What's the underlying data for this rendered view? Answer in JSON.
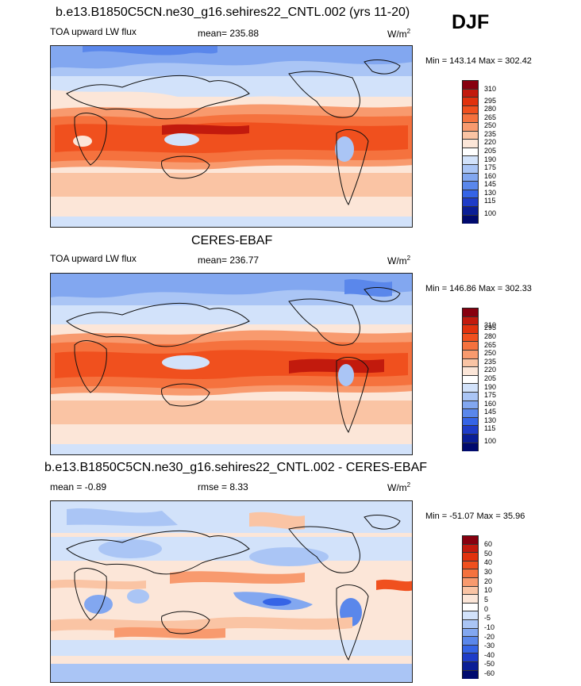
{
  "season": "DJF",
  "colors": {
    "model_scale": [
      "#87000f",
      "#c21a0d",
      "#e1320d",
      "#f0501e",
      "#f5723e",
      "#f89a6e",
      "#fac4a4",
      "#fce6d8",
      "#ffffff",
      "#d2e2fa",
      "#aac5f5",
      "#82a7f0",
      "#5a87eb",
      "#3564e6",
      "#1e3cc8",
      "#0a1e96",
      "#000a6e"
    ],
    "diff_scale": [
      "#87000f",
      "#c21a0d",
      "#e1320d",
      "#f0501e",
      "#f5723e",
      "#f89a6e",
      "#fac4a4",
      "#fce6d8",
      "#ffffff",
      "#d2e2fa",
      "#aac5f5",
      "#82a7f0",
      "#5a87eb",
      "#3564e6",
      "#1e3cc8",
      "#0a1e96",
      "#000a6e"
    ],
    "ocean_map_base": "#f6d0bb",
    "coast": "#111111"
  },
  "panels": [
    {
      "title": "b.e13.B1850C5CN.ne30_g16.sehires22_CNTL.002 (yrs 11-20)",
      "variable": "TOA upward LW flux",
      "mean_text": "mean= 235.88",
      "units_base": "W/m",
      "units_exp": "2",
      "minmax": "Min = 143.14 Max = 302.42",
      "ticks": [
        "310",
        "295",
        "280",
        "265",
        "250",
        "235",
        "220",
        "205",
        "190",
        "175",
        "160",
        "145",
        "130",
        "115",
        "100"
      ]
    },
    {
      "title": "CERES-EBAF",
      "variable": "TOA upward LW flux",
      "mean_text": "mean= 236.77",
      "units_base": "W/m",
      "units_exp": "2",
      "minmax": "Min = 146.86 Max = 302.33",
      "ticks": [
        "310",
        "295",
        "280",
        "265",
        "250",
        "235",
        "220",
        "205",
        "190",
        "175",
        "160",
        "145",
        "130",
        "115",
        "100"
      ]
    },
    {
      "title": "b.e13.B1850C5CN.ne30_g16.sehires22_CNTL.002 - CERES-EBAF",
      "mean_text": "mean =  -0.89",
      "rmse_text": "rmse =   8.33",
      "units_base": "W/m",
      "units_exp": "2",
      "minmax": "Min = -51.07 Max =  35.96",
      "ticks": [
        "60",
        "50",
        "40",
        "30",
        "20",
        "10",
        "5",
        "0",
        "-5",
        "-10",
        "-20",
        "-30",
        "-40",
        "-50",
        "-60"
      ]
    }
  ]
}
